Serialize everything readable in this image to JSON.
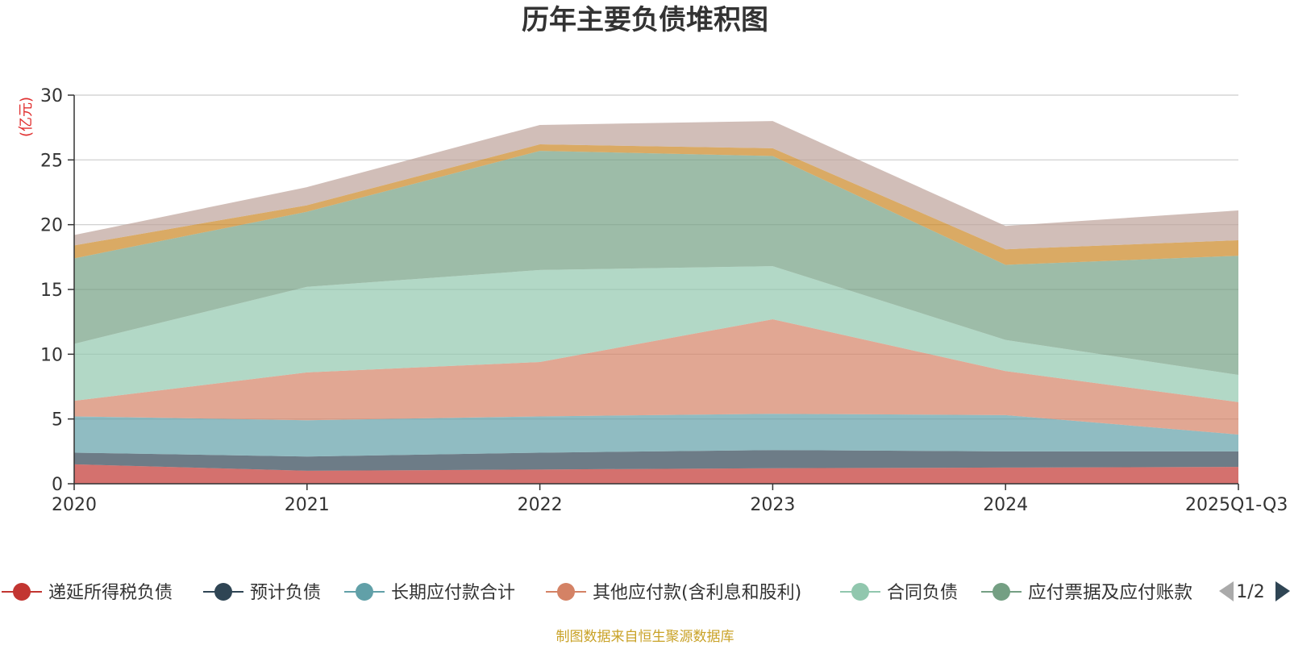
{
  "chart_data": {
    "type": "area",
    "stacked": true,
    "title": "历年主要负债堆积图",
    "ylabel": "(亿元)",
    "xlabel": "",
    "ylim": [
      0,
      30
    ],
    "yticks": [
      0,
      5,
      10,
      15,
      20,
      25,
      30
    ],
    "grid": true,
    "categories": [
      "2020",
      "2021",
      "2022",
      "2023",
      "2024",
      "2025Q1-Q3"
    ],
    "series": [
      {
        "name": "递延所得税负债",
        "color": "#c23531",
        "values": [
          1.5,
          1.0,
          1.1,
          1.2,
          1.25,
          1.3
        ]
      },
      {
        "name": "预计负债",
        "color": "#2f4554",
        "values": [
          0.9,
          1.1,
          1.3,
          1.4,
          1.25,
          1.2
        ]
      },
      {
        "name": "长期应付款合计",
        "color": "#61a0a8",
        "values": [
          2.8,
          2.8,
          2.8,
          2.8,
          2.8,
          1.3
        ]
      },
      {
        "name": "其他应付款(含利息和股利)",
        "color": "#d48265",
        "values": [
          1.2,
          3.7,
          4.2,
          7.3,
          3.4,
          2.5
        ]
      },
      {
        "name": "合同负债",
        "color": "#91c7ae",
        "values": [
          4.4,
          6.6,
          7.1,
          4.1,
          2.4,
          2.1
        ]
      },
      {
        "name": "应付票据及应付账款",
        "color": "#749f83",
        "values": [
          6.6,
          5.8,
          9.2,
          8.5,
          5.8,
          9.2
        ]
      },
      {
        "name": "",
        "color": "#ca8622",
        "values": [
          1.0,
          0.5,
          0.5,
          0.6,
          1.2,
          1.2
        ]
      },
      {
        "name": "",
        "color": "#bda29a",
        "values": [
          0.8,
          1.4,
          1.5,
          2.1,
          1.8,
          2.3
        ]
      }
    ]
  },
  "legend": {
    "visible_count": 6,
    "page": "1/2"
  },
  "source_note": "制图数据来自恒生聚源数据库"
}
